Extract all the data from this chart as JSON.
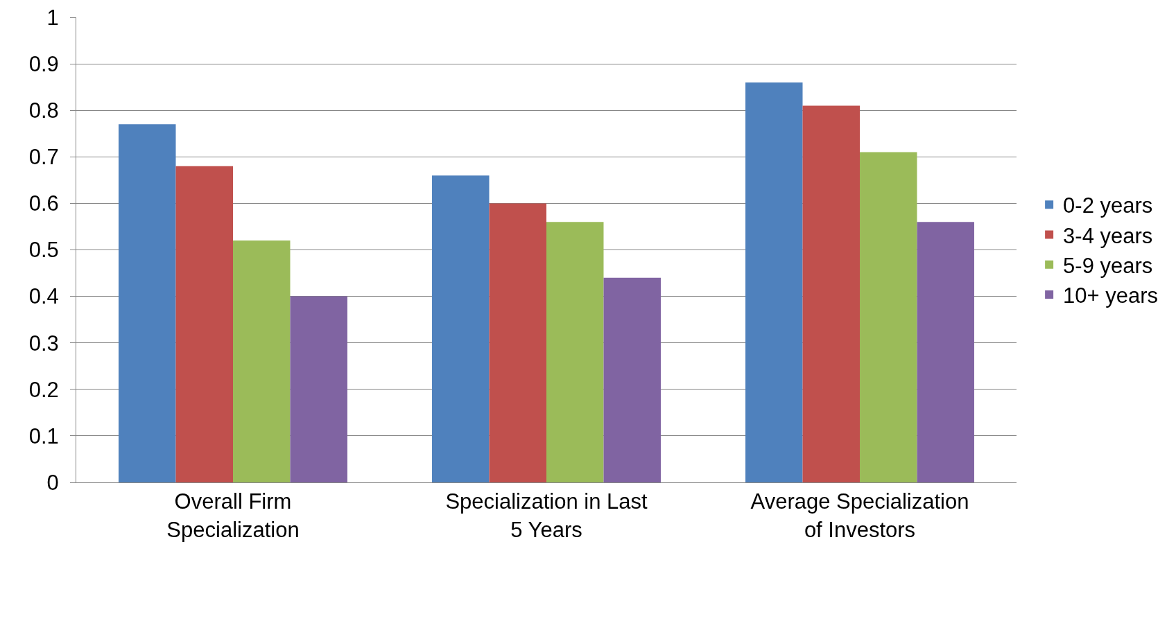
{
  "chart_data": {
    "type": "bar",
    "categories": [
      "Overall Firm Specialization",
      "Specialization in Last 5 Years",
      "Average Specialization of Investors"
    ],
    "series": [
      {
        "name": "0-2 years",
        "color": "#4f81bd",
        "values": [
          0.77,
          0.66,
          0.86
        ]
      },
      {
        "name": "3-4 years",
        "color": "#c0504d",
        "values": [
          0.68,
          0.6,
          0.81
        ]
      },
      {
        "name": "5-9 years",
        "color": "#9bbb59",
        "values": [
          0.52,
          0.56,
          0.71
        ]
      },
      {
        "name": "10+ years",
        "color": "#8064a2",
        "values": [
          0.4,
          0.44,
          0.56
        ]
      }
    ],
    "ylim": [
      0,
      1
    ],
    "yticks": [
      0,
      0.1,
      0.2,
      0.3,
      0.4,
      0.5,
      0.6,
      0.7,
      0.8,
      0.9,
      1
    ],
    "grid": "y",
    "legend": "right"
  }
}
